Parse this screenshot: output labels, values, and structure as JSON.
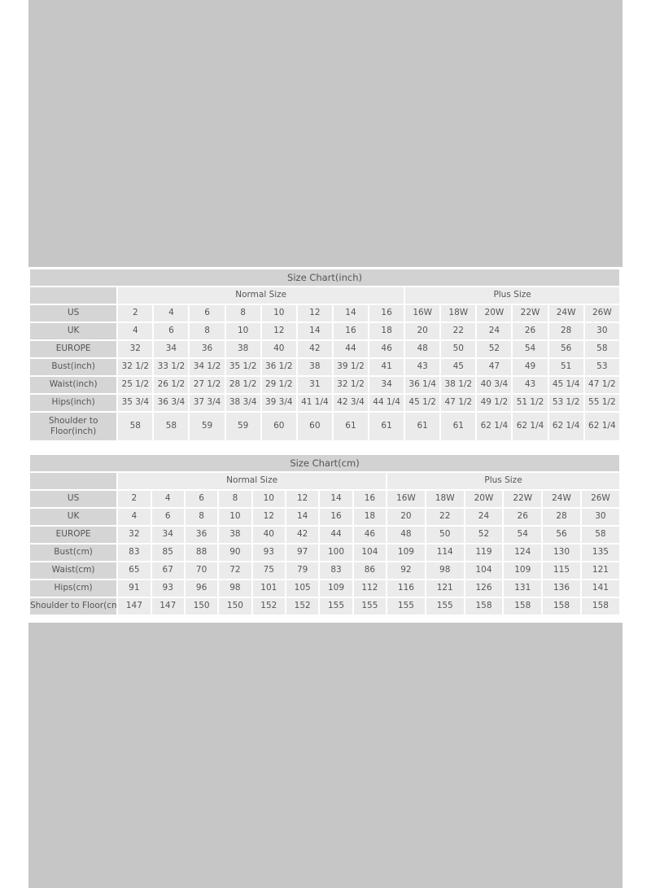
{
  "inch_chart": {
    "title": "Size Chart(inch)",
    "groups": [
      "Normal Size",
      "Plus Size"
    ],
    "rows": [
      {
        "label": "US",
        "values": [
          "2",
          "4",
          "6",
          "8",
          "10",
          "12",
          "14",
          "16",
          "16W",
          "18W",
          "20W",
          "22W",
          "24W",
          "26W"
        ]
      },
      {
        "label": "UK",
        "values": [
          "4",
          "6",
          "8",
          "10",
          "12",
          "14",
          "16",
          "18",
          "20",
          "22",
          "24",
          "26",
          "28",
          "30"
        ]
      },
      {
        "label": "EUROPE",
        "values": [
          "32",
          "34",
          "36",
          "38",
          "40",
          "42",
          "44",
          "46",
          "48",
          "50",
          "52",
          "54",
          "56",
          "58"
        ]
      },
      {
        "label": "Bust(inch)",
        "values": [
          "32 1/2",
          "33 1/2",
          "34 1/2",
          "35 1/2",
          "36 1/2",
          "38",
          "39 1/2",
          "41",
          "43",
          "45",
          "47",
          "49",
          "51",
          "53"
        ]
      },
      {
        "label": "Waist(inch)",
        "values": [
          "25 1/2",
          "26 1/2",
          "27 1/2",
          "28 1/2",
          "29 1/2",
          "31",
          "32 1/2",
          "34",
          "36 1/4",
          "38 1/2",
          "40 3/4",
          "43",
          "45 1/4",
          "47 1/2"
        ]
      },
      {
        "label": "Hips(inch)",
        "values": [
          "35 3/4",
          "36 3/4",
          "37 3/4",
          "38 3/4",
          "39 3/4",
          "41 1/4",
          "42 3/4",
          "44 1/4",
          "45 1/2",
          "47 1/2",
          "49 1/2",
          "51 1/2",
          "53 1/2",
          "55 1/2"
        ]
      },
      {
        "label": "Shoulder to Floor(inch)",
        "values": [
          "58",
          "58",
          "59",
          "59",
          "60",
          "60",
          "61",
          "61",
          "61",
          "61",
          "62 1/4",
          "62 1/4",
          "62 1/4",
          "62 1/4"
        ]
      }
    ]
  },
  "cm_chart": {
    "title": "Size Chart(cm)",
    "groups": [
      "Normal Size",
      "Plus Size"
    ],
    "rows": [
      {
        "label": "US",
        "values": [
          "2",
          "4",
          "6",
          "8",
          "10",
          "12",
          "14",
          "16",
          "16W",
          "18W",
          "20W",
          "22W",
          "24W",
          "26W"
        ]
      },
      {
        "label": "UK",
        "values": [
          "4",
          "6",
          "8",
          "10",
          "12",
          "14",
          "16",
          "18",
          "20",
          "22",
          "24",
          "26",
          "28",
          "30"
        ]
      },
      {
        "label": "EUROPE",
        "values": [
          "32",
          "34",
          "36",
          "38",
          "40",
          "42",
          "44",
          "46",
          "48",
          "50",
          "52",
          "54",
          "56",
          "58"
        ]
      },
      {
        "label": "Bust(cm)",
        "values": [
          "83",
          "85",
          "88",
          "90",
          "93",
          "97",
          "100",
          "104",
          "109",
          "114",
          "119",
          "124",
          "130",
          "135"
        ]
      },
      {
        "label": "Waist(cm)",
        "values": [
          "65",
          "67",
          "70",
          "72",
          "75",
          "79",
          "83",
          "86",
          "92",
          "98",
          "104",
          "109",
          "115",
          "121"
        ]
      },
      {
        "label": "Hips(cm)",
        "values": [
          "91",
          "93",
          "96",
          "98",
          "101",
          "105",
          "109",
          "112",
          "116",
          "121",
          "126",
          "131",
          "136",
          "141"
        ]
      },
      {
        "label": "Shoulder to Floor(cm)",
        "values": [
          "147",
          "147",
          "150",
          "150",
          "152",
          "152",
          "155",
          "155",
          "155",
          "155",
          "158",
          "158",
          "158",
          "158"
        ]
      }
    ]
  },
  "colors": {
    "background": "#c6c6c6",
    "label_cell": "#d5d5d5",
    "value_cell": "#ebebeb",
    "text": "#555555"
  }
}
